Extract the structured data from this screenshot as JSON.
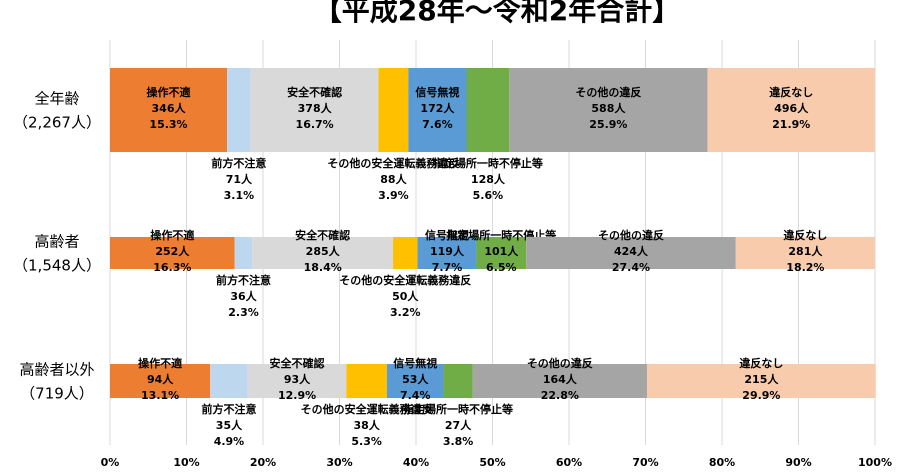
{
  "chart_data": {
    "type": "stacked_bar_100",
    "orientation": "horizontal",
    "title": "【平成28年～令和2年合計】",
    "categories": [
      [
        "全年齢",
        "（2,267人）"
      ],
      [
        "高齢者",
        "（1,548人）"
      ],
      [
        "高齢者以外",
        "（719人）"
      ]
    ],
    "series": [
      {
        "name": "操作不適",
        "color": "#ed7d31",
        "values": [
          15.3,
          16.3,
          13.1
        ],
        "value_labels": [
          "15.3%",
          "16.3%",
          "13.1%"
        ],
        "count_labels": [
          "346人",
          "252人",
          "94人"
        ]
      },
      {
        "name": "前方不注意",
        "color": "#bdd7ee",
        "values": [
          3.1,
          2.3,
          4.9
        ],
        "value_labels": [
          "3.1%",
          "2.3%",
          "4.9%"
        ],
        "count_labels": [
          "71人",
          "36人",
          "35人"
        ]
      },
      {
        "name": "安全不確認",
        "color": "#d9d9d9",
        "values": [
          16.7,
          18.4,
          12.9
        ],
        "value_labels": [
          "16.7%",
          "18.4%",
          "12.9%"
        ],
        "count_labels": [
          "378人",
          "285人",
          "93人"
        ]
      },
      {
        "name": "その他の安全運転義務違反",
        "color": "#ffc000",
        "values": [
          3.9,
          3.2,
          5.3
        ],
        "value_labels": [
          "3.9%",
          "3.2%",
          "5.3%"
        ],
        "count_labels": [
          "88人",
          "50人",
          "38人"
        ]
      },
      {
        "name": "信号無視",
        "color": "#5b9bd5",
        "values": [
          7.6,
          7.7,
          7.4
        ],
        "value_labels": [
          "7.6%",
          "7.7%",
          "7.4%"
        ],
        "count_labels": [
          "172人",
          "119人",
          "53人"
        ]
      },
      {
        "name": "指定場所一時不停止等",
        "color": "#70ad47",
        "values": [
          5.6,
          6.5,
          3.8
        ],
        "value_labels": [
          "5.6%",
          "6.5%",
          "3.8%"
        ],
        "count_labels": [
          "128人",
          "101人",
          "27人"
        ]
      },
      {
        "name": "その他の違反",
        "color": "#a5a5a5",
        "values": [
          25.9,
          27.4,
          22.8
        ],
        "value_labels": [
          "25.9%",
          "27.4%",
          "22.8%"
        ],
        "count_labels": [
          "588人",
          "424人",
          "164人"
        ]
      },
      {
        "name": "違反なし",
        "color": "#f8cbad",
        "values": [
          21.9,
          18.2,
          29.9
        ],
        "value_labels": [
          "21.9%",
          "18.2%",
          "29.9%"
        ],
        "count_labels": [
          "496人",
          "281人",
          "215人"
        ]
      }
    ],
    "xlim": [
      0,
      100
    ],
    "xticks": [
      {
        "value": 0,
        "label": "0%"
      },
      {
        "value": 10,
        "label": "10%"
      },
      {
        "value": 20,
        "label": "20%"
      },
      {
        "value": 30,
        "label": "30%"
      },
      {
        "value": 40,
        "label": "40%"
      },
      {
        "value": 50,
        "label": "50%"
      },
      {
        "value": 60,
        "label": "60%"
      },
      {
        "value": 70,
        "label": "70%"
      },
      {
        "value": 80,
        "label": "80%"
      },
      {
        "value": 90,
        "label": "90%"
      },
      {
        "value": 100,
        "label": "100%"
      }
    ],
    "grid": true
  }
}
